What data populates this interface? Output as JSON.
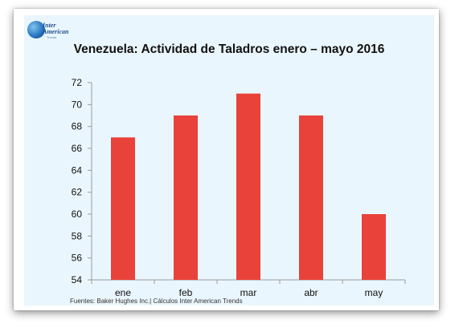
{
  "logo": {
    "line1": "Inter",
    "line2": "American",
    "line3": "Trends"
  },
  "colors": {
    "bar": "#e8423a",
    "axis": "#9a9a9a",
    "background": "#eaf6fd",
    "text": "#111111"
  },
  "footer": {
    "source": "Fuentes: Baker Hughes Inc.| Cálculos Inter American Trends"
  },
  "chart_data": {
    "type": "bar",
    "title": "Venezuela: Actividad de Taladros enero – mayo 2016",
    "xlabel": "",
    "ylabel": "",
    "categories": [
      "ene",
      "feb",
      "mar",
      "abr",
      "may"
    ],
    "series": [
      {
        "values": [
          67,
          69,
          71,
          69,
          60
        ]
      }
    ],
    "ylim": [
      54,
      72
    ],
    "yticks": [
      54,
      56,
      58,
      60,
      62,
      64,
      66,
      68,
      70,
      72
    ],
    "grid": false,
    "legend": "none"
  }
}
